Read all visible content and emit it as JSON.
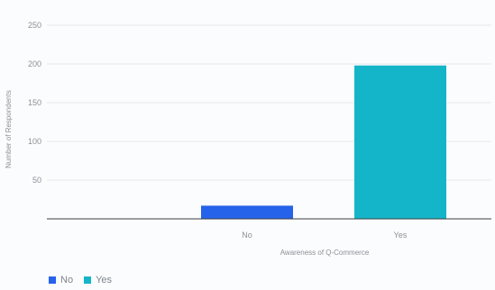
{
  "chart_data": {
    "type": "bar",
    "categories": [
      "No",
      "Yes"
    ],
    "values": [
      17,
      198
    ],
    "xlabel": "Awareness of Q-Commerce",
    "ylabel": "Number of Respondents",
    "ylim": [
      0,
      250
    ],
    "yticks": [
      50,
      100,
      150,
      200,
      250
    ],
    "ytick_labels": [
      "50",
      "100",
      "150",
      "200",
      "250"
    ],
    "grid": true,
    "legend": {
      "placement": "bottom-left",
      "items": [
        {
          "label": "No",
          "color": "#2563eb"
        },
        {
          "label": "Yes",
          "color": "#14b5c8"
        }
      ]
    },
    "colors": [
      "#2563eb",
      "#14b5c8"
    ]
  }
}
